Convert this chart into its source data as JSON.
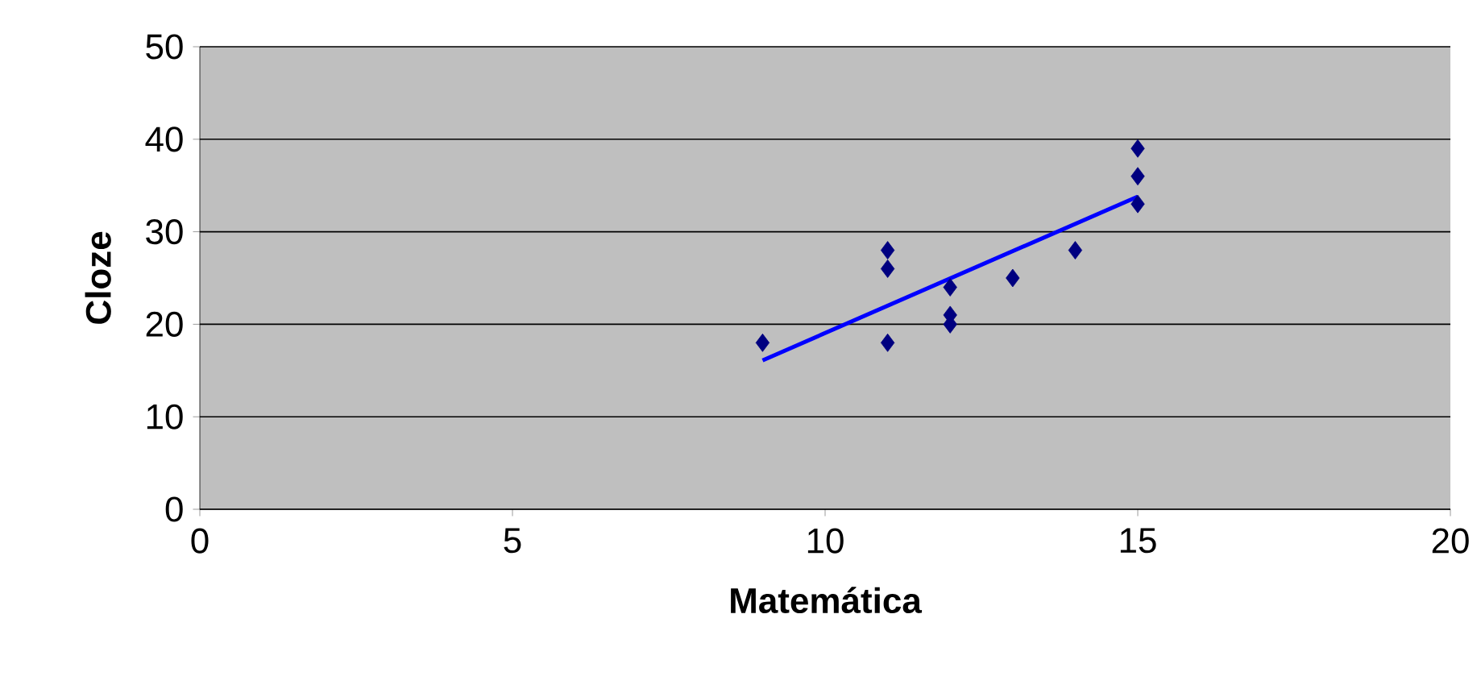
{
  "chart_data": {
    "type": "scatter",
    "xlabel": "Matemática",
    "ylabel": "Cloze",
    "xlim": [
      0,
      20
    ],
    "ylim": [
      0,
      50
    ],
    "xticks": [
      0,
      5,
      10,
      15,
      20
    ],
    "yticks": [
      0,
      10,
      20,
      30,
      40,
      50
    ],
    "grid": "y",
    "series": [
      {
        "color": "#000080",
        "marker": "diamond",
        "x": [
          9,
          11,
          11,
          11,
          12,
          12,
          12,
          13,
          14,
          15,
          15,
          15
        ],
        "values": [
          18,
          28,
          26,
          18,
          24,
          21,
          20,
          25,
          28,
          39,
          36,
          33
        ]
      },
      {
        "type": "line",
        "color": "#0000ff",
        "marker": "none",
        "x": [
          9,
          15
        ],
        "values": [
          16.1,
          33.8
        ]
      }
    ]
  }
}
